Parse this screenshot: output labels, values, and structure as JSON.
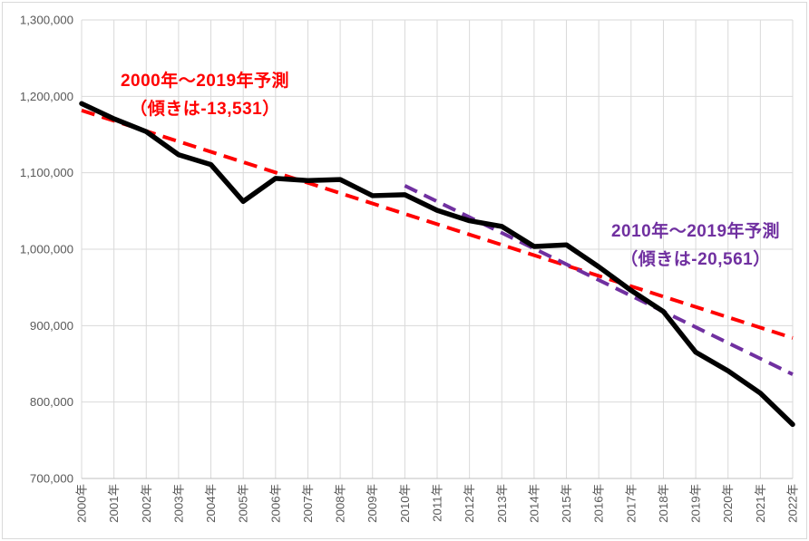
{
  "chart_data": {
    "type": "line",
    "title": "",
    "xlabel": "",
    "ylabel": "",
    "legend": false,
    "grid": true,
    "x_tick_labels": [
      "2000年",
      "2001年",
      "2002年",
      "2003年",
      "2004年",
      "2005年",
      "2006年",
      "2007年",
      "2008年",
      "2009年",
      "2010年",
      "2011年",
      "2012年",
      "2013年",
      "2014年",
      "2015年",
      "2016年",
      "2017年",
      "2018年",
      "2019年",
      "2020年",
      "2021年",
      "2022年"
    ],
    "years": [
      2000,
      2001,
      2002,
      2003,
      2004,
      2005,
      2006,
      2007,
      2008,
      2009,
      2010,
      2011,
      2012,
      2013,
      2014,
      2015,
      2016,
      2017,
      2018,
      2019,
      2020,
      2021,
      2022
    ],
    "y_axis": {
      "min": 700000,
      "max": 1300000,
      "step": 100000,
      "tick_labels": [
        "700,000",
        "800,000",
        "900,000",
        "1,000,000",
        "1,100,000",
        "1,200,000",
        "1,300,000"
      ]
    },
    "series": [
      {
        "name": "actual-values",
        "color": "#000000",
        "style": "solid",
        "values": [
          1190547,
          1170662,
          1153855,
          1123610,
          1110721,
          1062530,
          1092674,
          1089818,
          1091156,
          1070035,
          1071304,
          1050806,
          1037231,
          1029816,
          1003539,
          1005677,
          976978,
          946065,
          918397,
          865239,
          840835,
          811604,
          770747
        ]
      }
    ],
    "trendlines": [
      {
        "name": "trend-2000-2019",
        "color": "#FF0000",
        "style": "dashed",
        "slope": -13531,
        "start_year": 2000,
        "end_year": 2022,
        "start_value": 1181578,
        "end_value": 883895
      },
      {
        "name": "trend-2010-2019",
        "color": "#7030A0",
        "style": "dashed",
        "slope": -20561,
        "start_year": 2010,
        "end_year": 2022,
        "start_value": 1083030,
        "end_value": 836298
      }
    ],
    "annotations": {
      "red": {
        "line1": "2000年～2019年予測",
        "line2": "（傾きは-13,531）",
        "color": "#FF0000"
      },
      "purple": {
        "line1": "2010年～2019年予測",
        "line2": "（傾きは-20,561）",
        "color": "#7030A0"
      }
    },
    "colors": {
      "grid": "#D9D9D9",
      "axis_line": "#BFBFBF",
      "tick_text": "#595959",
      "background": "#FFFFFF",
      "border": "#D9D9D9"
    }
  }
}
